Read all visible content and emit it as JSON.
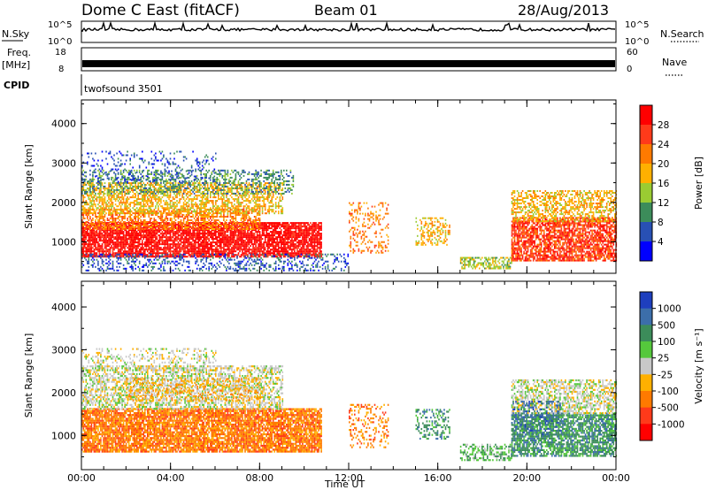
{
  "header": {
    "station": "Dome C East (fitACF)",
    "beam": "Beam 01",
    "date": "28/Aug/2013"
  },
  "top_panels": {
    "nsky_label": "N.Sky",
    "nsky_ticks": [
      "10^5",
      "10^0"
    ],
    "nsearch_label": "N.Search",
    "nsearch_ticks": [
      "10^5",
      "10^0"
    ],
    "freq_label": "Freq.",
    "freq_unit": "[MHz]",
    "freq_ticks": [
      "18",
      "8"
    ],
    "nave_label": "Nave",
    "nave_ticks": [
      "60",
      "0"
    ],
    "cpid_label": "CPID",
    "cpid_value": "twofsound 3501"
  },
  "chart_data": [
    {
      "type": "heatmap",
      "panel": "power",
      "ylabel": "Slant Range [km]",
      "xlabel": "",
      "ylim": [
        200,
        4600
      ],
      "y_ticks": [
        1000,
        2000,
        3000,
        4000
      ],
      "x_ticks": [
        "00:00",
        "04:00",
        "08:00",
        "12:00",
        "16:00",
        "20:00",
        "00:00"
      ],
      "colorbar": {
        "label": "Power [dB]",
        "ticks": [
          "28",
          "24",
          "20",
          "16",
          "12",
          "8",
          "4"
        ],
        "colors": [
          "#ff0000",
          "#ff3a1a",
          "#ff7a00",
          "#ffb000",
          "#9acb32",
          "#3c8c5a",
          "#2850b4",
          "#0000ff"
        ]
      },
      "regions": [
        {
          "t": [
            0.0,
            10.8
          ],
          "r": [
            600,
            1500
          ],
          "level": 0,
          "density": 0.85
        },
        {
          "t": [
            0.0,
            8.0
          ],
          "r": [
            1300,
            1800
          ],
          "level": 2,
          "density": 0.6
        },
        {
          "t": [
            0.0,
            9.0
          ],
          "r": [
            1700,
            2500
          ],
          "level": 3,
          "density": 0.55
        },
        {
          "t": [
            0.0,
            9.5
          ],
          "r": [
            2200,
            2800
          ],
          "level": 5,
          "density": 0.35
        },
        {
          "t": [
            0.0,
            6.0
          ],
          "r": [
            2500,
            3300
          ],
          "level": 6,
          "density": 0.15
        },
        {
          "t": [
            0.0,
            12.0
          ],
          "r": [
            250,
            700
          ],
          "level": 6,
          "density": 0.3
        },
        {
          "t": [
            12.0,
            13.8
          ],
          "r": [
            700,
            2000
          ],
          "level": 2,
          "density": 0.25
        },
        {
          "t": [
            15.0,
            16.5
          ],
          "r": [
            900,
            1600
          ],
          "level": 3,
          "density": 0.35
        },
        {
          "t": [
            17.0,
            19.3
          ],
          "r": [
            300,
            600
          ],
          "level": 4,
          "density": 0.55
        },
        {
          "t": [
            19.3,
            24.0
          ],
          "r": [
            500,
            1600
          ],
          "level": 1,
          "density": 0.75
        },
        {
          "t": [
            19.3,
            24.0
          ],
          "r": [
            1500,
            2300
          ],
          "level": 3,
          "density": 0.5
        }
      ]
    },
    {
      "type": "heatmap",
      "panel": "velocity",
      "ylabel": "Slant Range [km]",
      "xlabel": "Time UT",
      "ylim": [
        200,
        4600
      ],
      "y_ticks": [
        1000,
        2000,
        3000,
        4000
      ],
      "x_ticks": [
        "00:00",
        "04:00",
        "08:00",
        "12:00",
        "16:00",
        "20:00",
        "00:00"
      ],
      "colorbar": {
        "label": "Velocity [m s⁻¹]",
        "ticks": [
          "1000",
          "500",
          "100",
          "25",
          "-25",
          "-100",
          "-500",
          "-1000"
        ],
        "colors": [
          "#1e3fbe",
          "#3c6eaa",
          "#3c8c5a",
          "#55c83c",
          "#c8c8c8",
          "#ffb000",
          "#ff7a00",
          "#ff3a1a",
          "#ff0000"
        ]
      },
      "regions": [
        {
          "t": [
            0.0,
            10.8
          ],
          "r": [
            600,
            1600
          ],
          "level": 6,
          "density": 0.85
        },
        {
          "t": [
            0.0,
            9.0
          ],
          "r": [
            1600,
            2600
          ],
          "level": 4,
          "density": 0.55
        },
        {
          "t": [
            0.0,
            6.0
          ],
          "r": [
            2500,
            3000
          ],
          "level": 4,
          "density": 0.25
        },
        {
          "t": [
            2.0,
            8.0
          ],
          "r": [
            1800,
            2300
          ],
          "level": 5,
          "density": 0.35
        },
        {
          "t": [
            12.0,
            13.8
          ],
          "r": [
            700,
            1700
          ],
          "level": 6,
          "density": 0.25
        },
        {
          "t": [
            15.0,
            16.5
          ],
          "r": [
            900,
            1600
          ],
          "level": 2,
          "density": 0.3
        },
        {
          "t": [
            17.0,
            19.3
          ],
          "r": [
            400,
            800
          ],
          "level": 3,
          "density": 0.5
        },
        {
          "t": [
            19.3,
            24.0
          ],
          "r": [
            500,
            1500
          ],
          "level": 2,
          "density": 0.75
        },
        {
          "t": [
            19.3,
            24.0
          ],
          "r": [
            1500,
            2300
          ],
          "level": 4,
          "density": 0.55
        },
        {
          "t": [
            19.3,
            21.5
          ],
          "r": [
            1000,
            1800
          ],
          "level": 1,
          "density": 0.35
        }
      ]
    }
  ]
}
